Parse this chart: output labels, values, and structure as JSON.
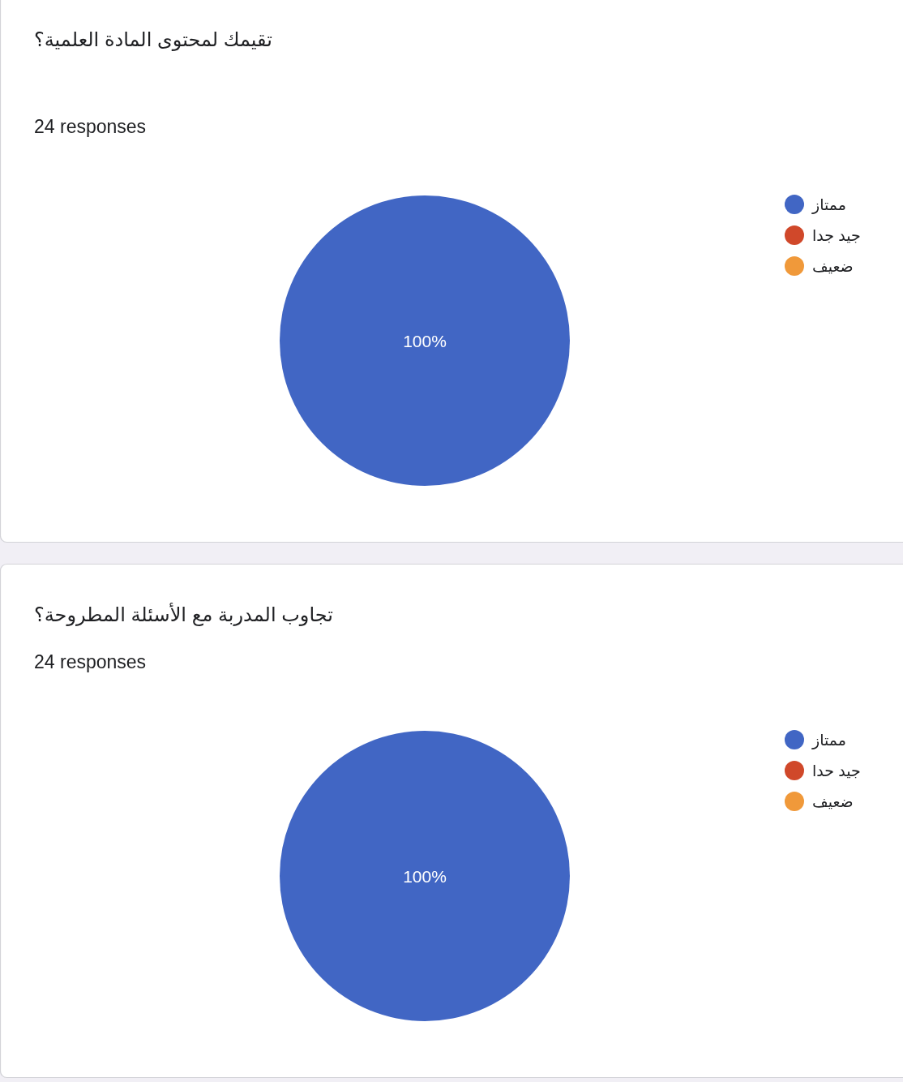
{
  "chart_data": [
    {
      "type": "pie",
      "title": "تقيمك لمحتوى المادة العلمية؟",
      "subtitle": "24 responses",
      "categories": [
        "ممتاز",
        "جيد جدا",
        "ضعيف"
      ],
      "values": [
        100,
        0,
        0
      ],
      "colors": [
        "#4166c4",
        "#d0482a",
        "#f0993a"
      ],
      "value_labels": [
        "100%",
        null,
        null
      ],
      "legend": "top right"
    },
    {
      "type": "pie",
      "title": "تجاوب المدربة مع الأسئلة المطروحة؟",
      "subtitle": "24 responses",
      "categories": [
        "ممتاز",
        "جيد حدا",
        "ضعيف"
      ],
      "values": [
        100,
        0,
        0
      ],
      "colors": [
        "#4166c4",
        "#d0482a",
        "#f0993a"
      ],
      "value_labels": [
        "100%",
        null,
        null
      ],
      "legend": "top right"
    }
  ]
}
